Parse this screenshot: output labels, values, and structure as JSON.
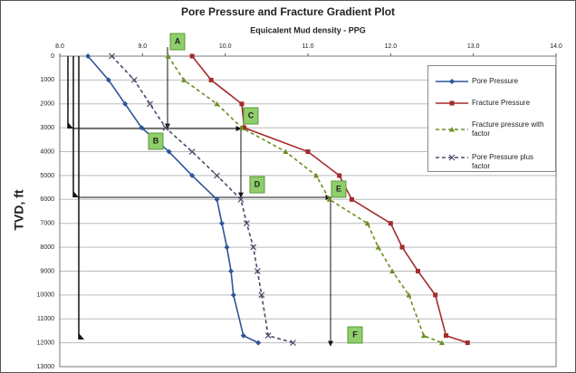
{
  "chart_data": {
    "type": "line",
    "title": "Pore Pressure and Fracture Gradient Plot",
    "x_label": "Equicalent Mud density - PPG",
    "y_label": "TVD, ft",
    "y": [
      0,
      1000,
      2000,
      3000,
      4000,
      5000,
      6000,
      7000,
      8000,
      9000,
      10000,
      11700,
      12000
    ],
    "series": [
      {
        "name": "Pore Pressure",
        "color": "#2e5597",
        "dash": false,
        "marker": "diamond",
        "values": [
          8.34,
          8.59,
          8.79,
          8.99,
          9.32,
          9.6,
          9.9,
          9.96,
          10.02,
          10.07,
          10.1,
          10.22,
          10.4
        ]
      },
      {
        "name": "Fracture Pressure",
        "color": "#a52a2a",
        "dash": false,
        "marker": "square",
        "values": [
          9.6,
          9.83,
          10.2,
          10.23,
          11.0,
          11.38,
          11.53,
          12.0,
          12.14,
          12.33,
          12.54,
          12.67,
          12.93
        ]
      },
      {
        "name": "Fracture pressure with factor",
        "color": "#6b8e23",
        "dash": true,
        "marker": "triangle",
        "values": [
          9.31,
          9.5,
          9.9,
          10.2,
          10.73,
          11.1,
          11.26,
          11.72,
          11.85,
          12.02,
          12.22,
          12.4,
          12.62
        ]
      },
      {
        "name": "Pore Pressure plus factor",
        "color": "#4a4a6a",
        "dash": true,
        "marker": "x",
        "values": [
          8.63,
          8.9,
          9.09,
          9.28,
          9.6,
          9.9,
          10.19,
          10.26,
          10.34,
          10.39,
          10.44,
          10.52,
          10.82
        ]
      }
    ],
    "xlim": [
      8,
      14
    ],
    "xticks": [
      {
        "value": 8,
        "label": "8.0"
      },
      {
        "value": 9,
        "label": "9.0"
      },
      {
        "value": 10,
        "label": "10.0"
      },
      {
        "value": 11,
        "label": "11.0"
      },
      {
        "value": 12,
        "label": "12.0"
      },
      {
        "value": 13,
        "label": "13.0"
      },
      {
        "value": 14,
        "label": "14.0"
      }
    ],
    "ylim": [
      0,
      13000
    ],
    "yticks": [
      0,
      1000,
      2000,
      3000,
      4000,
      5000,
      6000,
      7000,
      8000,
      9000,
      10000,
      11000,
      12000,
      13000
    ],
    "y_inverted": true,
    "grid": true,
    "annotations": [
      "A",
      "B",
      "C",
      "D",
      "E",
      "F"
    ]
  }
}
